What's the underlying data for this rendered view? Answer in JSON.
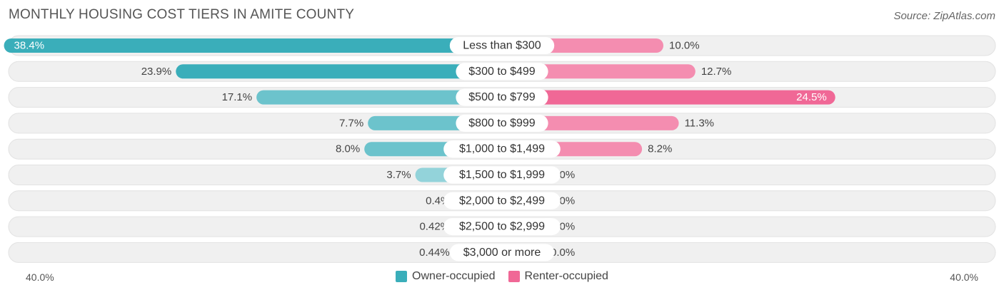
{
  "header": {
    "title": "MONTHLY HOUSING COST TIERS IN AMITE COUNTY",
    "source": "Source: ZipAtlas.com"
  },
  "colors": {
    "owner": "#3aaeba",
    "owner_light": "#93d3da",
    "renter": "#f06896",
    "renter_light": "#f6a9c3",
    "row_bg": "#f0f0f0"
  },
  "axis": {
    "left_label": "40.0%",
    "right_label": "40.0%"
  },
  "legend": {
    "owner_label": "Owner-occupied",
    "renter_label": "Renter-occupied"
  },
  "chart_data": {
    "type": "bar",
    "orientation": "diverging-horizontal",
    "title": "MONTHLY HOUSING COST TIERS IN AMITE COUNTY",
    "xlim": [
      -40,
      40
    ],
    "categories": [
      "Less than $300",
      "$300 to $499",
      "$500 to $799",
      "$800 to $999",
      "$1,000 to $1,499",
      "$1,500 to $1,999",
      "$2,000 to $2,499",
      "$2,500 to $2,999",
      "$3,000 or more"
    ],
    "series": [
      {
        "name": "Owner-occupied",
        "values": [
          38.4,
          23.9,
          17.1,
          7.7,
          8.0,
          3.7,
          0.4,
          0.42,
          0.44
        ],
        "labels": [
          "38.4%",
          "23.9%",
          "17.1%",
          "7.7%",
          "8.0%",
          "3.7%",
          "0.4%",
          "0.42%",
          "0.44%"
        ]
      },
      {
        "name": "Renter-occupied",
        "values": [
          10.0,
          12.7,
          24.5,
          11.3,
          8.2,
          0.0,
          0.0,
          0.0,
          0.0
        ],
        "labels": [
          "10.0%",
          "12.7%",
          "24.5%",
          "11.3%",
          "8.2%",
          "0.0%",
          "0.0%",
          "0.0%",
          "0.0%"
        ]
      }
    ],
    "legend_position": "bottom-center"
  }
}
